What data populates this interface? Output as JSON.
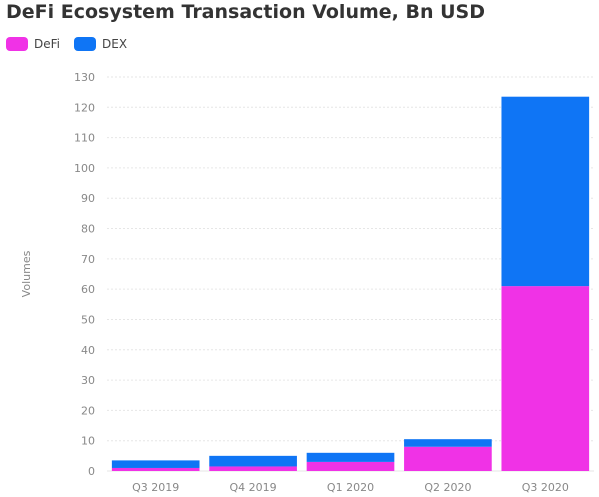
{
  "colors": {
    "defi": "#f032e6",
    "dex": "#0f75f5",
    "grid": "#e6e6e6",
    "axis_text": "#888888"
  },
  "legend": [
    {
      "label": "DeFi",
      "color": "#f032e6"
    },
    {
      "label": "DEX",
      "color": "#0f75f5"
    }
  ],
  "chart_data": {
    "type": "bar",
    "stacked": true,
    "title": "DeFi Ecosystem Transaction Volume, Bn USD",
    "xlabel": "",
    "ylabel": "Volumes",
    "categories": [
      "Q3 2019",
      "Q4 2019",
      "Q1 2020",
      "Q2 2020",
      "Q3 2020"
    ],
    "series": [
      {
        "name": "DeFi",
        "values": [
          1,
          1.5,
          3,
          8,
          61
        ]
      },
      {
        "name": "DEX",
        "values": [
          2.5,
          3.5,
          3,
          2.5,
          62.5
        ]
      }
    ],
    "ylim": [
      0,
      130
    ],
    "yticks": [
      0,
      10,
      20,
      30,
      40,
      50,
      60,
      70,
      80,
      90,
      100,
      110,
      120,
      130
    ],
    "grid": true,
    "legend_position": "top-left"
  }
}
